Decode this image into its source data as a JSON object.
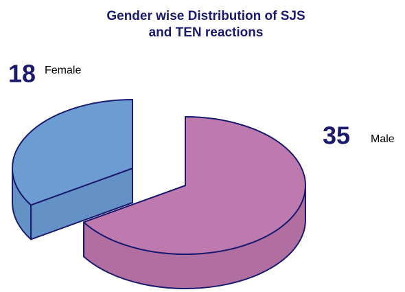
{
  "chart_data": {
    "type": "pie3d",
    "title": "Gender wise Distribution of SJS and TEN reactions",
    "categories": [
      "Female",
      "Male"
    ],
    "values": [
      18,
      35
    ],
    "colors": [
      "#6d9cd2",
      "#be7aae"
    ],
    "side_colors": [
      "#6592c6",
      "#b06ea1"
    ]
  }
}
